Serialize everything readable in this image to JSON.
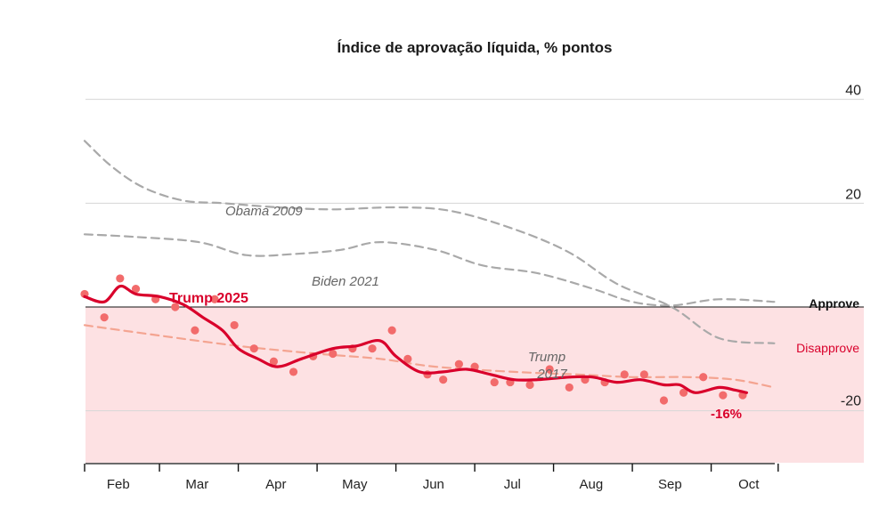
{
  "chart_data": {
    "type": "line",
    "title": "Índice de aprovação líquida, % pontos",
    "xlabel": "",
    "ylabel": "",
    "x_unit": "month index (0 = start of Feb, 1 = start of Mar, ...)",
    "xlim": [
      -0.45,
      8.35
    ],
    "ylim": [
      -30,
      42
    ],
    "y_ticks": [
      40,
      20,
      -20
    ],
    "gridlines": [
      40,
      20,
      -20
    ],
    "months": [
      "Feb",
      "Mar",
      "Apr",
      "May",
      "Jun",
      "Jul",
      "Aug",
      "Sep",
      "Oct"
    ],
    "zones": {
      "approve": "Approve",
      "disapprove": "Disapprove"
    },
    "colors": {
      "trump2025": "#d9002b",
      "trump2025_dots": "#f26b6b",
      "trump2017": "#f4a491",
      "comparison": "#a9a9a9",
      "disapprove_zone": "#fde1e3",
      "grid": "#d6d6d6"
    },
    "series": [
      {
        "name": "Obama 2009",
        "style": "dashed-gray",
        "x": [
          -0.45,
          -0.1,
          0.3,
          0.8,
          1.3,
          2.0,
          2.7,
          3.5,
          4.2,
          5.0,
          5.7,
          6.3,
          7.0,
          7.6,
          8.3
        ],
        "y": [
          32,
          27,
          23,
          20.5,
          20,
          19.2,
          18.8,
          19.2,
          18.5,
          15,
          10.5,
          4.5,
          0,
          -6,
          -7
        ],
        "label": "Obama 2009"
      },
      {
        "name": "Biden 2021",
        "style": "dashed-gray",
        "x": [
          -0.45,
          0.2,
          1.0,
          1.6,
          2.2,
          2.8,
          3.3,
          4.0,
          4.6,
          5.3,
          6.0,
          6.5,
          7.0,
          7.6,
          8.3
        ],
        "y": [
          14,
          13.5,
          12.5,
          10,
          10.2,
          11,
          12.5,
          11,
          8,
          6.5,
          3.5,
          1,
          0.3,
          1.5,
          1
        ],
        "label": "Biden 2021"
      },
      {
        "name": "Trump 2017",
        "style": "dashed-salmon",
        "x": [
          -0.45,
          0.5,
          1.5,
          2.5,
          3.3,
          4.0,
          5.0,
          5.8,
          6.5,
          7.2,
          7.8,
          8.3
        ],
        "y": [
          -3.5,
          -5.5,
          -7.5,
          -9,
          -10,
          -11.5,
          -12.5,
          -13,
          -13.5,
          -13.5,
          -14,
          -15.5
        ],
        "label": "Trump 2017"
      },
      {
        "name": "Trump 2025",
        "style": "solid-red",
        "x": [
          -0.45,
          -0.2,
          0.0,
          0.2,
          0.5,
          0.8,
          1.05,
          1.3,
          1.5,
          1.75,
          2.0,
          2.3,
          2.7,
          3.0,
          3.3,
          3.5,
          3.8,
          4.1,
          4.4,
          4.7,
          5.0,
          5.3,
          5.7,
          6.0,
          6.3,
          6.6,
          6.9,
          7.1,
          7.3,
          7.6,
          7.8,
          7.95
        ],
        "y": [
          2,
          1,
          4,
          2.5,
          2,
          0.5,
          -2,
          -4.5,
          -8,
          -10,
          -11.5,
          -10,
          -8,
          -7.5,
          -6.5,
          -9.5,
          -12.5,
          -12.5,
          -12,
          -13,
          -14,
          -14,
          -13.5,
          -13.5,
          -14.5,
          -14,
          -15,
          -15,
          -16.5,
          -15.5,
          -16,
          -16.5
        ],
        "label": "Trump 2025",
        "end_label": "-16%"
      }
    ],
    "points": {
      "name": "Trump 2025 polls",
      "x": [
        -0.45,
        -0.2,
        0.0,
        0.2,
        0.45,
        0.7,
        0.95,
        1.2,
        1.45,
        1.7,
        1.95,
        2.2,
        2.45,
        2.7,
        2.95,
        3.2,
        3.45,
        3.65,
        3.9,
        4.1,
        4.3,
        4.5,
        4.75,
        4.95,
        5.2,
        5.45,
        5.7,
        5.9,
        6.15,
        6.4,
        6.65,
        6.9,
        7.15,
        7.4,
        7.65,
        7.9
      ],
      "y": [
        2.5,
        -2,
        5.5,
        3.5,
        1.5,
        0,
        -4.5,
        1.5,
        -3.5,
        -8,
        -10.5,
        -12.5,
        -9.5,
        -9,
        -8,
        -8,
        -4.5,
        -10,
        -13,
        -14,
        -11,
        -11.5,
        -14.5,
        -14.5,
        -15,
        -12,
        -15.5,
        -14,
        -14.5,
        -13,
        -13,
        -18,
        -16.5,
        -13.5,
        -17,
        -17
      ]
    }
  }
}
